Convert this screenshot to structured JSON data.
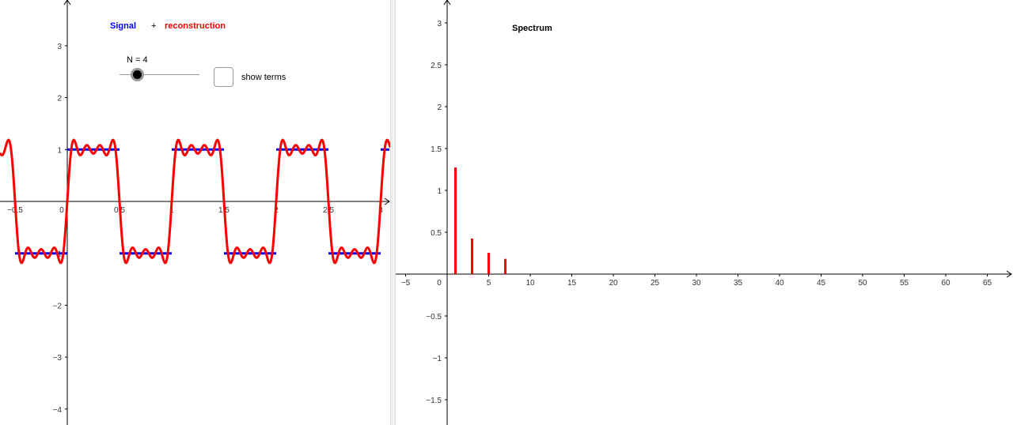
{
  "chart_data": [
    {
      "type": "line",
      "title_parts": {
        "signal": "Signal",
        "plus": "+",
        "reconstruction": "reconstruction"
      },
      "xlim": [
        -0.64,
        3.08
      ],
      "ylim": [
        -4.3,
        3.9
      ],
      "x_ticks": [
        "−0.5",
        "0",
        "0.5",
        "1",
        "1.5",
        "2",
        "2.5",
        "3"
      ],
      "x_tick_values": [
        -0.5,
        0,
        0.5,
        1,
        1.5,
        2,
        2.5,
        3
      ],
      "y_ticks": [
        "3",
        "2",
        "1",
        "−1",
        "−2",
        "−3",
        "−4"
      ],
      "y_tick_values": [
        3,
        2,
        1,
        -1,
        -2,
        -3,
        -4
      ],
      "series": [
        {
          "name": "Signal",
          "color": "#0000ff",
          "kind": "square wave",
          "period": 1,
          "amplitude": 1
        },
        {
          "name": "reconstruction",
          "color": "#ff0000",
          "kind": "Fourier partial sum",
          "harmonics": [
            1,
            3,
            5,
            7
          ],
          "coefficients": [
            1.273,
            0.424,
            0.255,
            0.182
          ]
        }
      ],
      "slider": {
        "label": "N = 4",
        "value": 4,
        "fraction": 0.2
      },
      "checkbox": {
        "label": "show terms",
        "checked": false
      }
    },
    {
      "type": "bar",
      "title": "Spectrum",
      "xlim": [
        -6,
        68
      ],
      "ylim": [
        -1.8,
        3.3
      ],
      "x_ticks": [
        "−5",
        "0",
        "5",
        "10",
        "15",
        "20",
        "25",
        "30",
        "35",
        "40",
        "45",
        "50",
        "55",
        "60",
        "65"
      ],
      "x_tick_values": [
        -5,
        0,
        5,
        10,
        15,
        20,
        25,
        30,
        35,
        40,
        45,
        50,
        55,
        60,
        65
      ],
      "y_ticks": [
        "3",
        "2.5",
        "2",
        "1.5",
        "1",
        "0.5",
        "−0.5",
        "−1",
        "−1.5"
      ],
      "y_tick_values": [
        3,
        2.5,
        2,
        1.5,
        1,
        0.5,
        -0.5,
        -1,
        -1.5
      ],
      "x": [
        1,
        3,
        5,
        7
      ],
      "values": [
        1.273,
        0.424,
        0.255,
        0.182
      ],
      "color": "#ff0000"
    }
  ]
}
